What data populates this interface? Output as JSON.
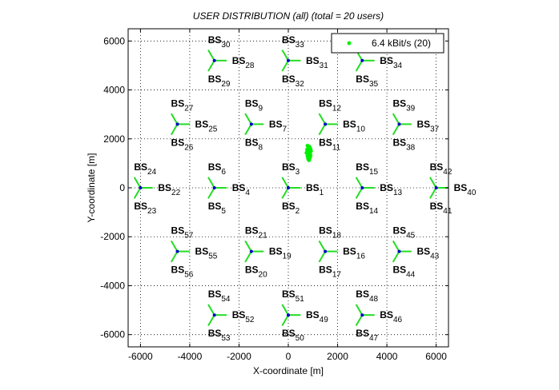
{
  "chart_data": {
    "type": "scatter",
    "title": "USER DISTRIBUTION (all) (total = 20 users)",
    "xlabel": "X-coordinate [m]",
    "ylabel": "Y-coordinate [m]",
    "xlim": [
      -6500,
      6500
    ],
    "ylim": [
      -6500,
      6500
    ],
    "xticks": [
      -6000,
      -4000,
      -2000,
      0,
      2000,
      4000,
      6000
    ],
    "yticks": [
      -6000,
      -4000,
      -2000,
      0,
      2000,
      4000,
      6000
    ],
    "grid": true,
    "legend_position": "top-right",
    "colors": {
      "users": "#00ee00",
      "antenna": "#22dd22",
      "site": "#0000cc",
      "axis": "#000000"
    },
    "series": [
      {
        "name": "6.4 kBit/s (20)",
        "points": [
          [
            780,
            1720
          ],
          [
            860,
            1680
          ],
          [
            820,
            1620
          ],
          [
            900,
            1590
          ],
          [
            760,
            1560
          ],
          [
            840,
            1540
          ],
          [
            920,
            1500
          ],
          [
            800,
            1480
          ],
          [
            880,
            1450
          ],
          [
            740,
            1430
          ],
          [
            860,
            1400
          ],
          [
            820,
            1360
          ],
          [
            900,
            1330
          ],
          [
            780,
            1310
          ],
          [
            840,
            1280
          ],
          [
            880,
            1250
          ],
          [
            800,
            1220
          ],
          [
            860,
            1190
          ],
          [
            820,
            1160
          ],
          [
            840,
            1130
          ]
        ]
      }
    ],
    "sites": [
      {
        "x": 0,
        "y": 0,
        "labels": [
          [
            "3",
            "BS",
            "3"
          ],
          [
            "1",
            "BS",
            "1"
          ],
          [
            "2",
            "BS",
            "2"
          ]
        ]
      },
      {
        "x": 3000,
        "y": 0,
        "labels": [
          [
            "3",
            "BS",
            "15"
          ],
          [
            "1",
            "BS",
            "13"
          ],
          [
            "2",
            "BS",
            "14"
          ]
        ]
      },
      {
        "x": 6000,
        "y": 0,
        "labels": [
          [
            "3",
            "BS",
            "42"
          ],
          [
            "1",
            "BS",
            "40"
          ],
          [
            "2",
            "BS",
            "41"
          ]
        ]
      },
      {
        "x": -3000,
        "y": 0,
        "labels": [
          [
            "3",
            "BS",
            "6"
          ],
          [
            "1",
            "BS",
            "4"
          ],
          [
            "2",
            "BS",
            "5"
          ]
        ]
      },
      {
        "x": -6000,
        "y": 0,
        "labels": [
          [
            "3",
            "BS",
            "24"
          ],
          [
            "1",
            "BS",
            "22"
          ],
          [
            "2",
            "BS",
            "23"
          ]
        ]
      },
      {
        "x": 1500,
        "y": 2600,
        "labels": [
          [
            "3",
            "BS",
            "12"
          ],
          [
            "1",
            "BS",
            "10"
          ],
          [
            "2",
            "BS",
            "11"
          ]
        ]
      },
      {
        "x": -1500,
        "y": 2600,
        "labels": [
          [
            "3",
            "BS",
            "9"
          ],
          [
            "1",
            "BS",
            "7"
          ],
          [
            "2",
            "BS",
            "8"
          ]
        ]
      },
      {
        "x": 4500,
        "y": 2600,
        "labels": [
          [
            "3",
            "BS",
            "39"
          ],
          [
            "1",
            "BS",
            "37"
          ],
          [
            "2",
            "BS",
            "38"
          ]
        ]
      },
      {
        "x": -4500,
        "y": 2600,
        "labels": [
          [
            "3",
            "BS",
            "27"
          ],
          [
            "1",
            "BS",
            "25"
          ],
          [
            "2",
            "BS",
            "26"
          ]
        ]
      },
      {
        "x": 0,
        "y": 5200,
        "labels": [
          [
            "3",
            "BS",
            "33"
          ],
          [
            "1",
            "BS",
            "31"
          ],
          [
            "2",
            "BS",
            "32"
          ]
        ]
      },
      {
        "x": 3000,
        "y": 5200,
        "labels": [
          [
            "3",
            "BS",
            "36"
          ],
          [
            "1",
            "BS",
            "34"
          ],
          [
            "2",
            "BS",
            "35"
          ]
        ]
      },
      {
        "x": -3000,
        "y": 5200,
        "labels": [
          [
            "3",
            "BS",
            "30"
          ],
          [
            "1",
            "BS",
            "28"
          ],
          [
            "2",
            "BS",
            "29"
          ]
        ]
      },
      {
        "x": 1500,
        "y": -2600,
        "labels": [
          [
            "3",
            "BS",
            "18"
          ],
          [
            "1",
            "BS",
            "16"
          ],
          [
            "2",
            "BS",
            "17"
          ]
        ]
      },
      {
        "x": -1500,
        "y": -2600,
        "labels": [
          [
            "3",
            "BS",
            "21"
          ],
          [
            "1",
            "BS",
            "19"
          ],
          [
            "2",
            "BS",
            "20"
          ]
        ]
      },
      {
        "x": 4500,
        "y": -2600,
        "labels": [
          [
            "3",
            "BS",
            "45"
          ],
          [
            "1",
            "BS",
            "43"
          ],
          [
            "2",
            "BS",
            "44"
          ]
        ]
      },
      {
        "x": -4500,
        "y": -2600,
        "labels": [
          [
            "3",
            "BS",
            "57"
          ],
          [
            "1",
            "BS",
            "55"
          ],
          [
            "2",
            "BS",
            "56"
          ]
        ]
      },
      {
        "x": 0,
        "y": -5200,
        "labels": [
          [
            "3",
            "BS",
            "51"
          ],
          [
            "1",
            "BS",
            "49"
          ],
          [
            "2",
            "BS",
            "50"
          ]
        ]
      },
      {
        "x": 3000,
        "y": -5200,
        "labels": [
          [
            "3",
            "BS",
            "48"
          ],
          [
            "1",
            "BS",
            "46"
          ],
          [
            "2",
            "BS",
            "47"
          ]
        ]
      },
      {
        "x": -3000,
        "y": -5200,
        "labels": [
          [
            "3",
            "BS",
            "54"
          ],
          [
            "1",
            "BS",
            "52"
          ],
          [
            "2",
            "BS",
            "53"
          ]
        ]
      }
    ]
  }
}
